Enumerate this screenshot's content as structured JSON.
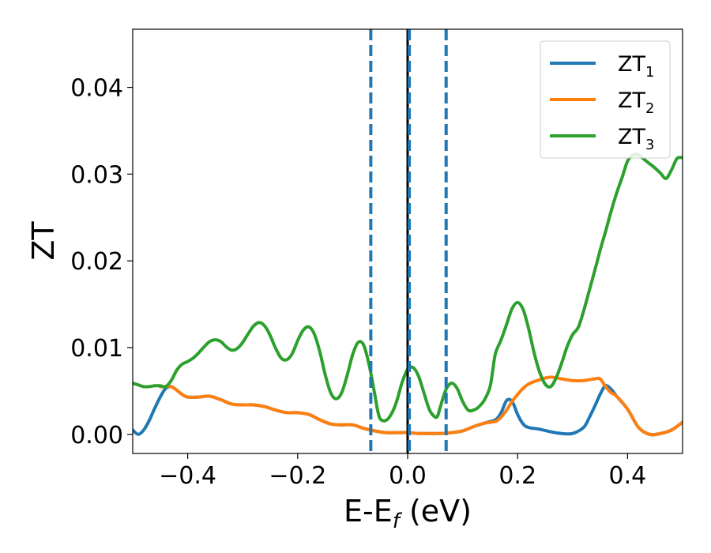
{
  "chart_data": {
    "type": "line",
    "xlabel": "E-E",
    "xlabel_sub": "f",
    "xlabel_unit": " (eV)",
    "ylabel": "ZT",
    "xlim": [
      -0.5,
      0.5
    ],
    "ylim": [
      -0.0022,
      0.0467
    ],
    "x_ticks": [
      -0.4,
      -0.2,
      0.0,
      0.2,
      0.4
    ],
    "x_tick_labels": [
      "−0.4",
      "−0.2",
      "0.0",
      "0.2",
      "0.4"
    ],
    "y_ticks": [
      0.0,
      0.01,
      0.02,
      0.03,
      0.04
    ],
    "y_tick_labels": [
      "0.00",
      "0.01",
      "0.02",
      "0.03",
      "0.04"
    ],
    "grid": false,
    "legend_position": "top-right",
    "vlines": [
      {
        "x": 0.0,
        "color": "#000000",
        "style": "solid"
      },
      {
        "x": -0.067,
        "color": "#1f77b4",
        "style": "dashed"
      },
      {
        "x": 0.003,
        "color": "#1f77b4",
        "style": "dashed"
      },
      {
        "x": 0.07,
        "color": "#1f77b4",
        "style": "dashed"
      }
    ],
    "series": [
      {
        "name": "ZT",
        "sub": "1",
        "color": "#1f77b4",
        "x": [
          -0.5,
          -0.49,
          -0.48,
          -0.47,
          -0.46,
          -0.45,
          -0.44,
          -0.43,
          -0.42,
          -0.41,
          -0.4,
          -0.38,
          -0.36,
          -0.34,
          -0.32,
          -0.3,
          -0.28,
          -0.26,
          -0.24,
          -0.22,
          -0.2,
          -0.18,
          -0.16,
          -0.14,
          -0.12,
          -0.1,
          -0.08,
          -0.06,
          -0.04,
          -0.02,
          0.0,
          0.02,
          0.04,
          0.06,
          0.08,
          0.1,
          0.12,
          0.14,
          0.16,
          0.17,
          0.18,
          0.19,
          0.2,
          0.21,
          0.22,
          0.24,
          0.26,
          0.28,
          0.3,
          0.32,
          0.33,
          0.34,
          0.35,
          0.36,
          0.37,
          0.38,
          0.4,
          0.42,
          0.44,
          0.46,
          0.48,
          0.5
        ],
        "y": [
          0.0005,
          0.0,
          0.0005,
          0.0016,
          0.003,
          0.0043,
          0.0053,
          0.0055,
          0.0051,
          0.0046,
          0.0043,
          0.0043,
          0.0044,
          0.004,
          0.0035,
          0.0034,
          0.0034,
          0.0032,
          0.0028,
          0.0025,
          0.0025,
          0.0023,
          0.0017,
          0.0012,
          0.0011,
          0.0011,
          0.0007,
          0.0004,
          0.0002,
          0.0002,
          0.0002,
          0.0001,
          0.0001,
          0.0001,
          0.0002,
          0.0004,
          0.0009,
          0.0013,
          0.0017,
          0.0025,
          0.0039,
          0.0038,
          0.0023,
          0.0012,
          0.0008,
          0.0006,
          0.0003,
          0.0001,
          0.0001,
          0.0008,
          0.0019,
          0.0032,
          0.0046,
          0.0056,
          0.0052,
          0.0044,
          0.0029,
          0.0008,
          0.0,
          0.0001,
          0.0005,
          0.0014
        ]
      },
      {
        "name": "ZT",
        "sub": "2",
        "color": "#ff7f0e",
        "x": [
          -0.45,
          -0.44,
          -0.43,
          -0.42,
          -0.41,
          -0.4,
          -0.38,
          -0.36,
          -0.34,
          -0.32,
          -0.3,
          -0.28,
          -0.26,
          -0.24,
          -0.22,
          -0.2,
          -0.18,
          -0.16,
          -0.14,
          -0.12,
          -0.1,
          -0.08,
          -0.06,
          -0.04,
          -0.02,
          0.0,
          0.02,
          0.04,
          0.06,
          0.08,
          0.1,
          0.12,
          0.14,
          0.16,
          0.17,
          0.18,
          0.185,
          0.19,
          0.2,
          0.21,
          0.22,
          0.24,
          0.26,
          0.28,
          0.3,
          0.32,
          0.33,
          0.34,
          0.35,
          0.36,
          0.37,
          0.38,
          0.4,
          0.42,
          0.44,
          0.46,
          0.48,
          0.5
        ],
        "y": [
          0.0055,
          0.0055,
          0.0055,
          0.0051,
          0.0046,
          0.0043,
          0.0043,
          0.0044,
          0.004,
          0.0035,
          0.0034,
          0.0034,
          0.0032,
          0.0028,
          0.0025,
          0.0025,
          0.0023,
          0.0017,
          0.0012,
          0.0011,
          0.0011,
          0.0007,
          0.0004,
          0.0002,
          0.0002,
          0.0002,
          0.0001,
          0.0001,
          0.0001,
          0.0002,
          0.0004,
          0.0009,
          0.0013,
          0.0015,
          0.002,
          0.0028,
          0.0033,
          0.0038,
          0.0046,
          0.0053,
          0.0058,
          0.0063,
          0.0066,
          0.0064,
          0.0062,
          0.0062,
          0.0063,
          0.0064,
          0.0064,
          0.0055,
          0.0048,
          0.0044,
          0.0029,
          0.0008,
          0.0,
          0.0001,
          0.0005,
          0.0014
        ]
      },
      {
        "name": "ZT",
        "sub": "3",
        "color": "#2ca02c",
        "x": [
          -0.5,
          -0.49,
          -0.48,
          -0.47,
          -0.46,
          -0.45,
          -0.44,
          -0.43,
          -0.42,
          -0.41,
          -0.4,
          -0.39,
          -0.38,
          -0.37,
          -0.36,
          -0.35,
          -0.34,
          -0.33,
          -0.32,
          -0.31,
          -0.3,
          -0.29,
          -0.28,
          -0.27,
          -0.26,
          -0.25,
          -0.24,
          -0.23,
          -0.22,
          -0.21,
          -0.2,
          -0.19,
          -0.18,
          -0.17,
          -0.16,
          -0.15,
          -0.14,
          -0.13,
          -0.12,
          -0.11,
          -0.1,
          -0.09,
          -0.08,
          -0.07,
          -0.06,
          -0.055,
          -0.05,
          -0.04,
          -0.03,
          -0.02,
          -0.01,
          0.0,
          0.01,
          0.02,
          0.03,
          0.04,
          0.05,
          0.055,
          0.06,
          0.07,
          0.08,
          0.09,
          0.1,
          0.11,
          0.12,
          0.13,
          0.14,
          0.15,
          0.155,
          0.16,
          0.17,
          0.18,
          0.19,
          0.2,
          0.21,
          0.22,
          0.23,
          0.24,
          0.25,
          0.26,
          0.27,
          0.28,
          0.29,
          0.3,
          0.31,
          0.32,
          0.33,
          0.34,
          0.35,
          0.36,
          0.37,
          0.38,
          0.39,
          0.4,
          0.41,
          0.42,
          0.43,
          0.44,
          0.45,
          0.46,
          0.47,
          0.48,
          0.49,
          0.5
        ],
        "y": [
          0.0059,
          0.0057,
          0.0055,
          0.0055,
          0.0056,
          0.0056,
          0.0055,
          0.0062,
          0.0074,
          0.0081,
          0.0084,
          0.0088,
          0.0094,
          0.0101,
          0.0107,
          0.0109,
          0.0107,
          0.0101,
          0.0097,
          0.0099,
          0.0106,
          0.0116,
          0.0125,
          0.0129,
          0.0125,
          0.0114,
          0.0099,
          0.0088,
          0.0086,
          0.0093,
          0.0108,
          0.012,
          0.0124,
          0.0116,
          0.0096,
          0.0069,
          0.0048,
          0.0041,
          0.0048,
          0.0068,
          0.0092,
          0.0106,
          0.0103,
          0.008,
          0.0047,
          0.0029,
          0.0018,
          0.0016,
          0.0023,
          0.0038,
          0.006,
          0.0075,
          0.0077,
          0.0067,
          0.0047,
          0.0028,
          0.002,
          0.0022,
          0.0033,
          0.0052,
          0.0059,
          0.0053,
          0.0038,
          0.0028,
          0.0028,
          0.0032,
          0.004,
          0.0055,
          0.0075,
          0.0094,
          0.0109,
          0.0127,
          0.0145,
          0.0152,
          0.0144,
          0.0122,
          0.0094,
          0.0072,
          0.0058,
          0.0055,
          0.0065,
          0.0082,
          0.0101,
          0.0115,
          0.0123,
          0.0142,
          0.0165,
          0.0188,
          0.0212,
          0.0234,
          0.0257,
          0.0278,
          0.0296,
          0.0315,
          0.0322,
          0.0322,
          0.0317,
          0.0312,
          0.0307,
          0.0301,
          0.0295,
          0.0305,
          0.0318,
          0.0319
        ]
      }
    ]
  }
}
